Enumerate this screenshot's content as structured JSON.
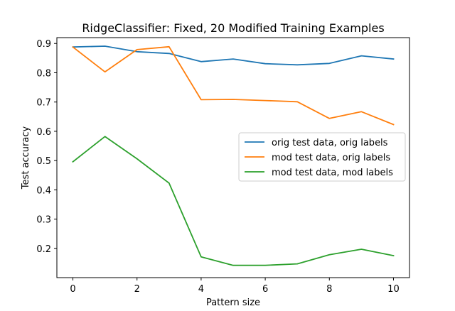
{
  "chart_data": {
    "type": "line",
    "title": "RidgeClassifier: Fixed, 20 Modified Training Examples",
    "xlabel": "Pattern size",
    "ylabel": "Test accuracy",
    "xlim": [
      -0.5,
      10.5
    ],
    "ylim": [
      0.1,
      0.92
    ],
    "xticks": [
      0,
      2,
      4,
      6,
      8,
      10
    ],
    "yticks": [
      0.2,
      0.3,
      0.4,
      0.5,
      0.6,
      0.7,
      0.8,
      0.9
    ],
    "ytick_labels": [
      "0.2",
      "0.3",
      "0.4",
      "0.5",
      "0.6",
      "0.7",
      "0.8",
      "0.9"
    ],
    "grid": false,
    "legend_position": "center-right",
    "x": [
      0,
      1,
      2,
      3,
      4,
      5,
      6,
      7,
      8,
      9,
      10
    ],
    "series": [
      {
        "name": "orig test data, orig labels",
        "color": "#1f77b4",
        "values": [
          0.888,
          0.891,
          0.872,
          0.866,
          0.838,
          0.847,
          0.831,
          0.827,
          0.832,
          0.858,
          0.847
        ]
      },
      {
        "name": "mod test data, orig labels",
        "color": "#ff7f0e",
        "values": [
          0.888,
          0.803,
          0.879,
          0.889,
          0.708,
          0.709,
          0.705,
          0.701,
          0.644,
          0.667,
          0.623
        ]
      },
      {
        "name": "mod test data, mod labels",
        "color": "#2ca02c",
        "values": [
          0.496,
          0.582,
          0.506,
          0.423,
          0.171,
          0.142,
          0.142,
          0.147,
          0.178,
          0.197,
          0.175
        ]
      }
    ]
  }
}
